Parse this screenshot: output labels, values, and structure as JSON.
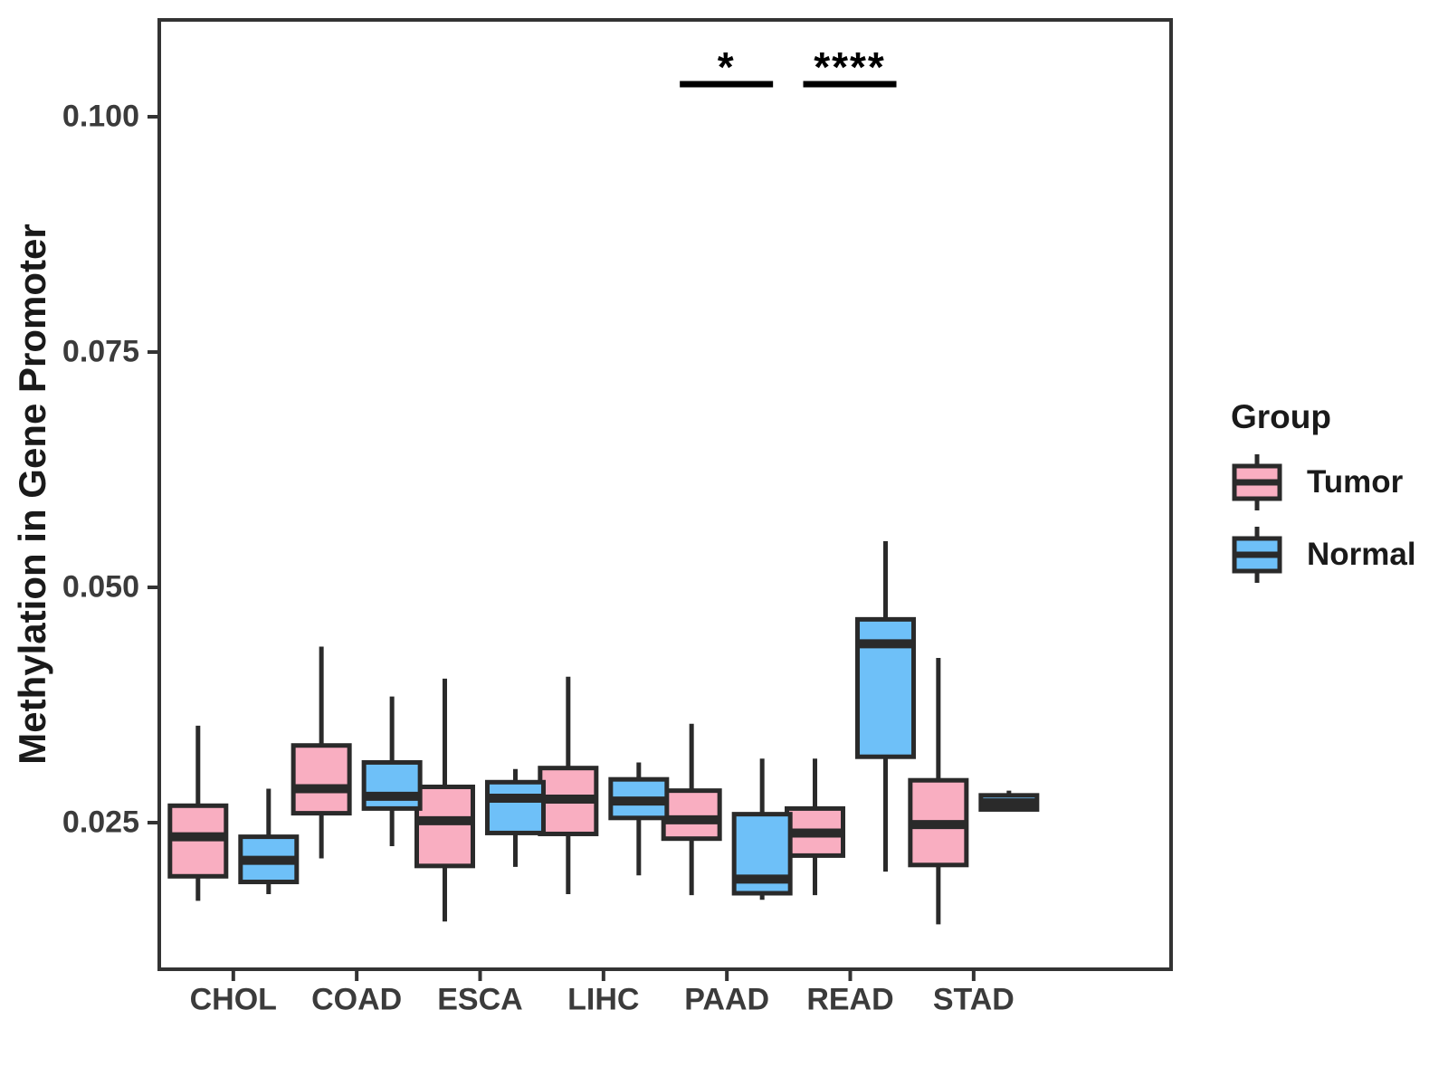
{
  "chart_data": {
    "type": "boxplot",
    "title": "",
    "xlabel": "",
    "ylabel": "Methylation in Gene Promoter",
    "categories": [
      "CHOL",
      "COAD",
      "ESCA",
      "LIHC",
      "PAAD",
      "READ",
      "STAD"
    ],
    "y_ticks": [
      0.025,
      0.05,
      0.075,
      0.1
    ],
    "y_tick_labels": [
      "0.025",
      "0.050",
      "0.075",
      "0.100"
    ],
    "ylim": [
      0.0093,
      0.1103
    ],
    "grid": false,
    "panel_border": true,
    "box_values_format": [
      "whisker_low",
      "q1",
      "median",
      "q3",
      "whisker_high"
    ],
    "series": [
      {
        "name": "Tumor",
        "color": "#F9AEC1",
        "boxes": [
          [
            0.0167,
            0.0193,
            0.0235,
            0.0268,
            0.0353
          ],
          [
            0.0212,
            0.026,
            0.0286,
            0.0332,
            0.0437
          ],
          [
            0.0145,
            0.0204,
            0.0252,
            0.0288,
            0.0403
          ],
          [
            0.0174,
            0.0238,
            0.0275,
            0.0308,
            0.0405
          ],
          [
            0.0173,
            0.0233,
            0.0253,
            0.0284,
            0.0355
          ],
          [
            0.0173,
            0.0215,
            0.0239,
            0.0265,
            0.0318
          ],
          [
            0.0142,
            0.0205,
            0.0248,
            0.0295,
            0.0425
          ]
        ]
      },
      {
        "name": "Normal",
        "color": "#6EC0F8",
        "boxes": [
          [
            0.0174,
            0.0187,
            0.021,
            0.0235,
            0.0286
          ],
          [
            0.0225,
            0.0265,
            0.0278,
            0.0314,
            0.0384
          ],
          [
            0.0203,
            0.0239,
            0.0276,
            0.0293,
            0.0307
          ],
          [
            0.0194,
            0.0255,
            0.0273,
            0.0296,
            0.0314
          ],
          [
            0.0168,
            0.0175,
            0.019,
            0.0259,
            0.0318
          ],
          [
            0.0198,
            0.032,
            0.044,
            0.0466,
            0.0549
          ],
          [
            0.0262,
            0.0264,
            0.0271,
            0.0279,
            0.0284
          ]
        ]
      }
    ],
    "significance": [
      {
        "category": "PAAD",
        "label": "*"
      },
      {
        "category": "READ",
        "label": "****"
      }
    ],
    "legend": {
      "title": "Group",
      "position": "right",
      "entries": [
        {
          "label": "Tumor",
          "color": "#F9AEC1"
        },
        {
          "label": "Normal",
          "color": "#6EC0F8"
        }
      ]
    },
    "colors": {
      "box_stroke": "#2a2a2a",
      "axis": "#333333",
      "tick_text": "#3b3b3b",
      "title_text": "#1a1a1a"
    }
  }
}
